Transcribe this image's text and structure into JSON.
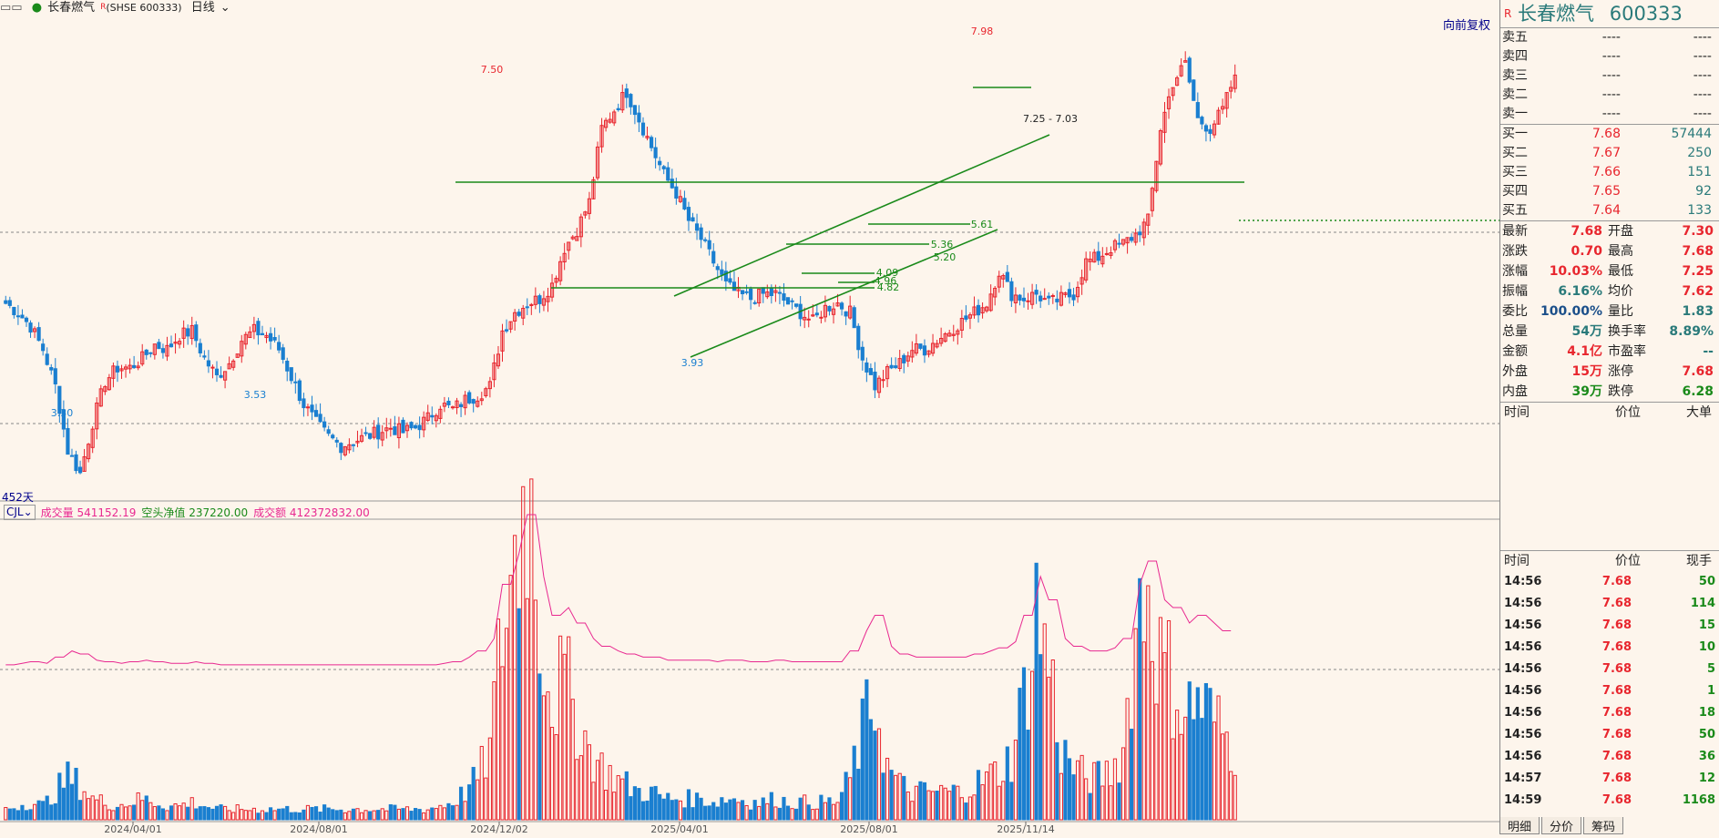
{
  "header": {
    "stock_name": "长春燃气",
    "marker": "R",
    "exchange_code": "(SHSE 600333)",
    "period": "日线",
    "fq_button": "向前复权",
    "days_label": "452天"
  },
  "indicator": {
    "name": "CJL",
    "vol_label": "成交量 541152.19",
    "net_label": "空头净值 237220.00",
    "amount_label": "成交额 412372832.00"
  },
  "x_ticks": [
    "2024/04/01",
    "2024/08/01",
    "2024/12/02",
    "2025/04/01",
    "2025/08/01",
    "2025/11/14"
  ],
  "annotations": {
    "high1": "7.50",
    "high2": "7.98",
    "low1": "3.30",
    "low2": "3.53",
    "low3": "3.93",
    "l561": "5.61",
    "l536": "5.36",
    "l520": "5.20",
    "l409": "4.09",
    "l496": "4.96",
    "l482": "4.82",
    "range": "7.25 - 7.03"
  },
  "colors": {
    "up": "#e8262e",
    "down": "#1a7fd0",
    "trend": "#1a8a1a",
    "ma": "#e82890"
  },
  "chart_data": {
    "type": "candlestick",
    "title": "",
    "price_range": [
      3.2,
      8.1
    ],
    "extremes": [
      {
        "date": "2024-02",
        "price": 3.3,
        "label": "3.30"
      },
      {
        "date": "2024-07",
        "price": 3.53,
        "label": "3.53"
      },
      {
        "date": "2024-11",
        "price": 7.5,
        "label": "7.50"
      },
      {
        "date": "2025-04",
        "price": 3.93,
        "label": "3.93"
      },
      {
        "date": "2025-10",
        "price": 7.98,
        "label": "7.98"
      }
    ],
    "levels": [
      5.61,
      5.36,
      5.2,
      4.09,
      4.96,
      4.82
    ],
    "close_path": [
      5.2,
      5.1,
      4.95,
      4.7,
      4.3,
      3.6,
      3.35,
      3.9,
      4.35,
      4.5,
      4.5,
      4.6,
      4.75,
      4.7,
      4.85,
      4.9,
      4.6,
      4.4,
      4.55,
      4.8,
      4.9,
      4.85,
      4.7,
      4.4,
      4.1,
      3.9,
      3.75,
      3.65,
      3.7,
      3.75,
      3.8,
      3.85,
      3.8,
      3.85,
      3.95,
      4.1,
      4.05,
      4.15,
      4.2,
      4.3,
      4.9,
      5.1,
      5.2,
      5.25,
      5.4,
      5.8,
      6.0,
      6.3,
      7.1,
      7.3,
      7.5,
      7.2,
      6.9,
      6.6,
      6.4,
      6.1,
      5.9,
      5.65,
      5.4,
      5.3,
      5.25,
      5.3,
      5.3,
      5.2,
      5.1,
      5.0,
      5.15,
      5.2,
      5.1,
      4.6,
      4.3,
      4.45,
      4.55,
      4.7,
      4.7,
      4.8,
      4.9,
      5.0,
      5.1,
      5.2,
      5.55,
      5.3,
      5.25,
      5.3,
      5.2,
      5.25,
      5.3,
      5.65,
      5.7,
      5.8,
      5.85,
      5.95,
      6.1,
      7.1,
      7.6,
      7.8,
      7.2,
      7.1,
      7.3,
      7.68
    ],
    "volume_series_label": "成交量",
    "volume_path": [
      3,
      4,
      5,
      4,
      8,
      12,
      10,
      6,
      5,
      4,
      5,
      6,
      5,
      4,
      4,
      5,
      4,
      3,
      3,
      3,
      3,
      3,
      3,
      3,
      3,
      3,
      3,
      3,
      3,
      3,
      3,
      3,
      3,
      3,
      3,
      4,
      5,
      8,
      12,
      20,
      55,
      75,
      100,
      60,
      35,
      40,
      30,
      20,
      15,
      12,
      10,
      8,
      8,
      6,
      6,
      6,
      6,
      5,
      6,
      6,
      5,
      5,
      6,
      5,
      5,
      5,
      5,
      5,
      12,
      25,
      35,
      15,
      10,
      8,
      8,
      8,
      8,
      8,
      10,
      12,
      14,
      18,
      35,
      60,
      45,
      20,
      15,
      12,
      12,
      14,
      20,
      55,
      70,
      45,
      40,
      30,
      35,
      30,
      25,
      20
    ]
  },
  "quote": {
    "title": "长春燃气",
    "code": "600333",
    "sell": [
      {
        "label": "卖五",
        "price": "----",
        "vol": "----"
      },
      {
        "label": "卖四",
        "price": "----",
        "vol": "----"
      },
      {
        "label": "卖三",
        "price": "----",
        "vol": "----"
      },
      {
        "label": "卖二",
        "price": "----",
        "vol": "----"
      },
      {
        "label": "卖一",
        "price": "----",
        "vol": "----"
      }
    ],
    "buy": [
      {
        "label": "买一",
        "price": "7.68",
        "vol": "57444"
      },
      {
        "label": "买二",
        "price": "7.67",
        "vol": "250"
      },
      {
        "label": "买三",
        "price": "7.66",
        "vol": "151"
      },
      {
        "label": "买四",
        "price": "7.65",
        "vol": "92"
      },
      {
        "label": "买五",
        "price": "7.64",
        "vol": "133"
      }
    ],
    "stats": [
      {
        "l1": "最新",
        "v1": "7.68",
        "c1": "red",
        "l2": "开盘",
        "v2": "7.30",
        "c2": "red"
      },
      {
        "l1": "涨跌",
        "v1": "0.70",
        "c1": "red",
        "l2": "最高",
        "v2": "7.68",
        "c2": "red"
      },
      {
        "l1": "涨幅",
        "v1": "10.03%",
        "c1": "red",
        "l2": "最低",
        "v2": "7.25",
        "c2": "red"
      },
      {
        "l1": "振幅",
        "v1": "6.16%",
        "c1": "teal",
        "l2": "均价",
        "v2": "7.62",
        "c2": "red"
      },
      {
        "l1": "委比",
        "v1": "100.00%",
        "c1": "blue",
        "l2": "量比",
        "v2": "1.83",
        "c2": "teal"
      },
      {
        "l1": "总量",
        "v1": "54万",
        "c1": "teal",
        "l2": "换手率",
        "v2": "8.89%",
        "c2": "teal"
      },
      {
        "l1": "金额",
        "v1": "4.1亿",
        "c1": "red",
        "l2": "市盈率",
        "v2": "--",
        "c2": "teal"
      },
      {
        "l1": "外盘",
        "v1": "15万",
        "c1": "red",
        "l2": "涨停",
        "v2": "7.68",
        "c2": "red"
      },
      {
        "l1": "内盘",
        "v1": "39万",
        "c1": "green",
        "l2": "跌停",
        "v2": "6.28",
        "c2": "green"
      }
    ],
    "panel1_header": [
      "时间",
      "价位",
      "大单"
    ],
    "panel2_header": [
      "时间",
      "价位",
      "现手"
    ],
    "ticks": [
      {
        "time": "14:56",
        "price": "7.68",
        "vol": "50"
      },
      {
        "time": "14:56",
        "price": "7.68",
        "vol": "114"
      },
      {
        "time": "14:56",
        "price": "7.68",
        "vol": "15"
      },
      {
        "time": "14:56",
        "price": "7.68",
        "vol": "10"
      },
      {
        "time": "14:56",
        "price": "7.68",
        "vol": "5"
      },
      {
        "time": "14:56",
        "price": "7.68",
        "vol": "1"
      },
      {
        "time": "14:56",
        "price": "7.68",
        "vol": "18"
      },
      {
        "time": "14:56",
        "price": "7.68",
        "vol": "50"
      },
      {
        "time": "14:56",
        "price": "7.68",
        "vol": "36"
      },
      {
        "time": "14:57",
        "price": "7.68",
        "vol": "12"
      },
      {
        "time": "14:59",
        "price": "7.68",
        "vol": "1168"
      }
    ],
    "tabs": [
      "明细",
      "分价",
      "筹码"
    ]
  }
}
